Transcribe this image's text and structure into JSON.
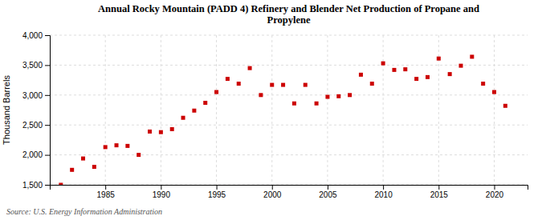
{
  "chart_data": {
    "type": "scatter",
    "title": "Annual Rocky Mountain (PADD 4) Refinery and Blender Net Production of Propane and\nPropylene",
    "ylabel": "Thousand Barrels",
    "source": "Source: U.S. Energy Information Administration",
    "x": [
      1981,
      1982,
      1983,
      1984,
      1985,
      1986,
      1987,
      1988,
      1989,
      1990,
      1991,
      1992,
      1993,
      1994,
      1995,
      1996,
      1997,
      1998,
      1999,
      2000,
      2001,
      2002,
      2003,
      2004,
      2005,
      2006,
      2007,
      2008,
      2009,
      2010,
      2011,
      2012,
      2013,
      2014,
      2015,
      2016,
      2017,
      2018,
      2019,
      2020,
      2021
    ],
    "values": [
      1500,
      1750,
      1940,
      1800,
      2130,
      2160,
      2150,
      2000,
      2390,
      2380,
      2430,
      2620,
      2740,
      2870,
      3050,
      3270,
      3190,
      3450,
      3000,
      3170,
      3170,
      2860,
      3170,
      2860,
      2970,
      2980,
      3000,
      3340,
      3190,
      3530,
      3420,
      3430,
      3270,
      3300,
      3610,
      3350,
      3490,
      3640,
      3190,
      3050,
      2820
    ],
    "color": "#cc0000",
    "marker": "square",
    "xlim": [
      1980,
      2023
    ],
    "ylim": [
      1500,
      4000
    ],
    "xticks": [
      1985,
      1990,
      1995,
      2000,
      2005,
      2010,
      2015,
      2020
    ],
    "yticks": [
      {
        "value": 1500,
        "label": "1,500"
      },
      {
        "value": 2000,
        "label": "2,000"
      },
      {
        "value": 2500,
        "label": "2,500"
      },
      {
        "value": 3000,
        "label": "3,000"
      },
      {
        "value": 3500,
        "label": "3,500"
      },
      {
        "value": 4000,
        "label": "4,000"
      }
    ],
    "grid": true
  }
}
